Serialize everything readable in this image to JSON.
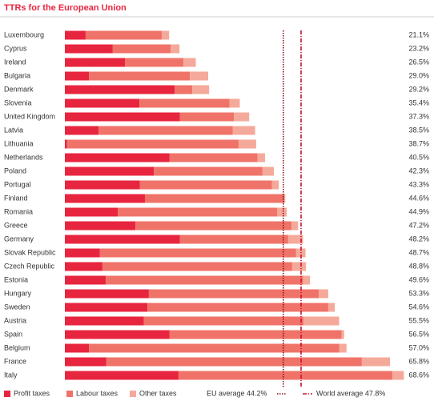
{
  "chart_data": {
    "type": "bar",
    "orientation": "horizontal",
    "stacked": true,
    "title": "TTRs for the European Union",
    "categories": [
      "Luxembourg",
      "Cyprus",
      "Ireland",
      "Bulgaria",
      "Denmark",
      "Slovenia",
      "United Kingdom",
      "Latvia",
      "Lithuania",
      "Netherlands",
      "Poland",
      "Portugal",
      "Finland",
      "Romania",
      "Greece",
      "Germany",
      "Slovak Republic",
      "Czech Republic",
      "Estonia",
      "Hungary",
      "Sweden",
      "Austria",
      "Spain",
      "Belgium",
      "France",
      "Italy"
    ],
    "series": [
      {
        "name": "Profit taxes",
        "color": "#e8253f",
        "values": [
          4.2,
          9.7,
          12.2,
          4.9,
          22.2,
          15.1,
          23.3,
          6.8,
          0.4,
          21.2,
          18.0,
          15.2,
          16.2,
          10.7,
          14.3,
          23.3,
          7.1,
          7.6,
          8.3,
          17.0,
          16.7,
          16.0,
          21.2,
          4.9,
          8.4,
          23.0
        ]
      },
      {
        "name": "Labour taxes",
        "color": "#f07369",
        "values": [
          15.4,
          11.7,
          11.8,
          20.4,
          3.6,
          18.2,
          10.9,
          27.2,
          34.8,
          17.8,
          22.0,
          26.7,
          28.2,
          32.3,
          31.6,
          21.9,
          39.7,
          38.4,
          39.9,
          34.4,
          36.6,
          32.3,
          34.8,
          50.6,
          51.7,
          43.3
        ]
      },
      {
        "name": "Other taxes",
        "color": "#f5a99a",
        "values": [
          1.5,
          1.8,
          2.5,
          3.7,
          3.4,
          2.1,
          3.1,
          4.5,
          3.5,
          1.5,
          2.3,
          1.4,
          0.2,
          1.9,
          1.3,
          3.0,
          1.9,
          2.8,
          1.4,
          1.9,
          1.3,
          7.2,
          0.5,
          1.5,
          5.7,
          2.3
        ]
      }
    ],
    "total_labels": [
      "21.1%",
      "23.2%",
      "26.5%",
      "29.0%",
      "29.2%",
      "35.4%",
      "37.3%",
      "38.5%",
      "38.7%",
      "40.5%",
      "42.3%",
      "43.3%",
      "44.6%",
      "44.9%",
      "47.2%",
      "48.2%",
      "48.7%",
      "48.8%",
      "49.6%",
      "53.3%",
      "54.6%",
      "55.5%",
      "56.5%",
      "57.0%",
      "65.8%",
      "68.6%"
    ],
    "reference_lines": [
      {
        "label": "EU average 44.2%",
        "value": 44.2,
        "color": "#8b1020",
        "dash": "1.5 1.5"
      },
      {
        "label": "World average 47.8%",
        "value": 47.8,
        "color": "#c8102e",
        "dash": "5 2 1 2"
      }
    ],
    "xlim": [
      0,
      70
    ]
  }
}
